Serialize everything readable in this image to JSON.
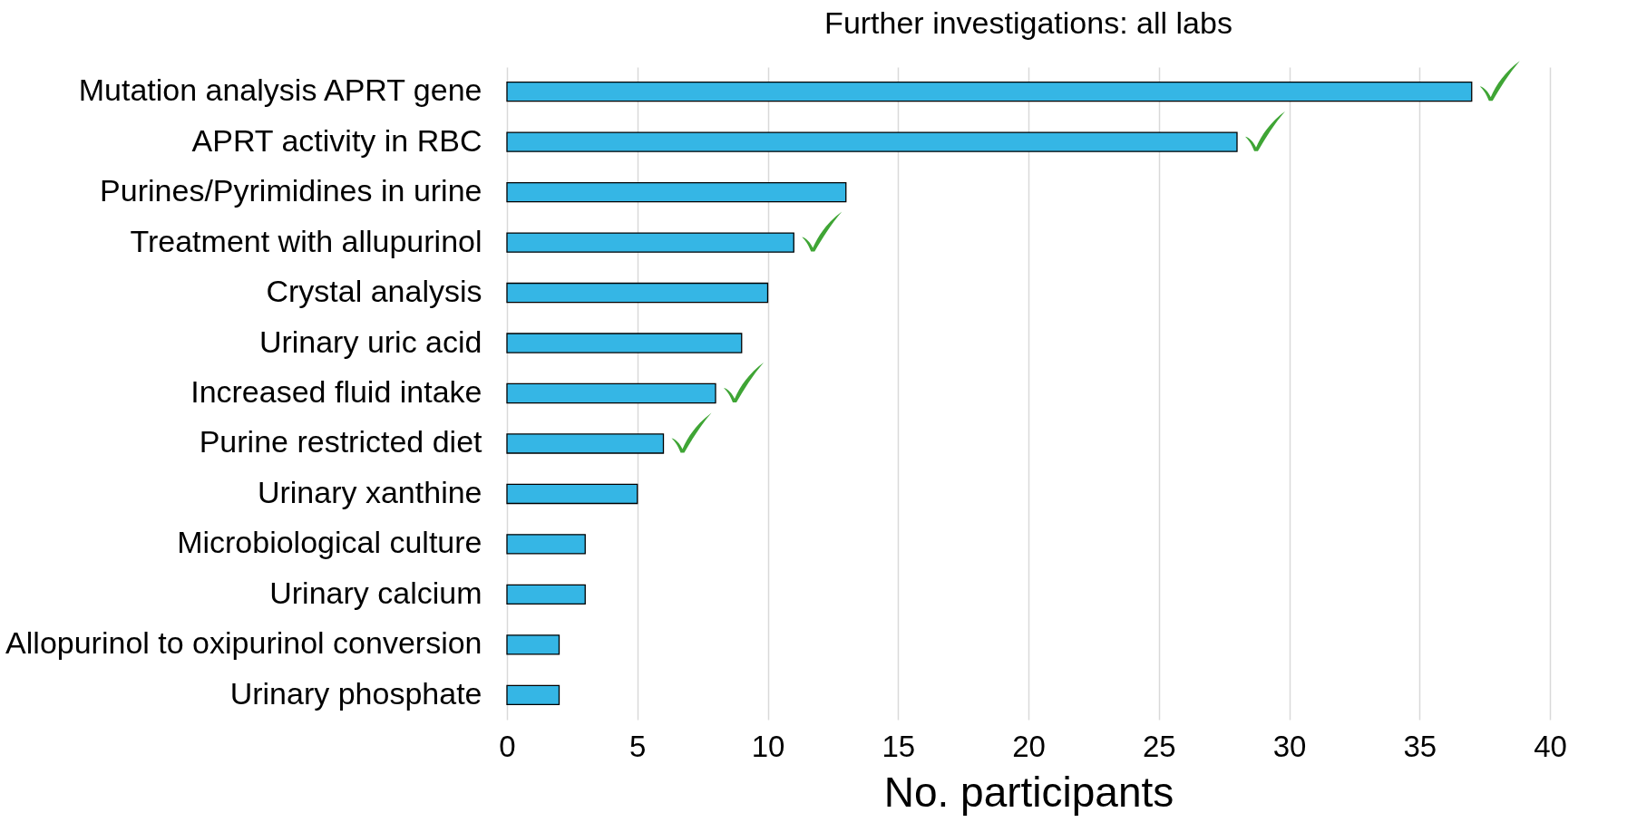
{
  "chart_data": {
    "type": "bar",
    "orientation": "horizontal",
    "title": "Further investigations: all labs",
    "xlabel": "No. participants",
    "categories": [
      "Mutation analysis APRT gene",
      "APRT activity in RBC",
      "Purines/Pyrimidines in urine",
      "Treatment with allupurinol",
      "Crystal analysis",
      "Urinary uric acid",
      "Increased fluid intake ",
      "Purine restricted diet",
      "Urinary xanthine",
      "Microbiological culture",
      "Urinary calcium",
      "Allopurinol to oxipurinol conversion",
      "Urinary phosphate"
    ],
    "values": [
      37,
      28,
      13,
      11,
      10,
      9,
      8,
      6,
      5,
      3,
      3,
      2,
      2
    ],
    "color": "#35b6e5",
    "xlim": [
      0,
      40
    ],
    "xticks": [
      0,
      5,
      10,
      15,
      20,
      25,
      30,
      35,
      40
    ],
    "grid": "x"
  }
}
